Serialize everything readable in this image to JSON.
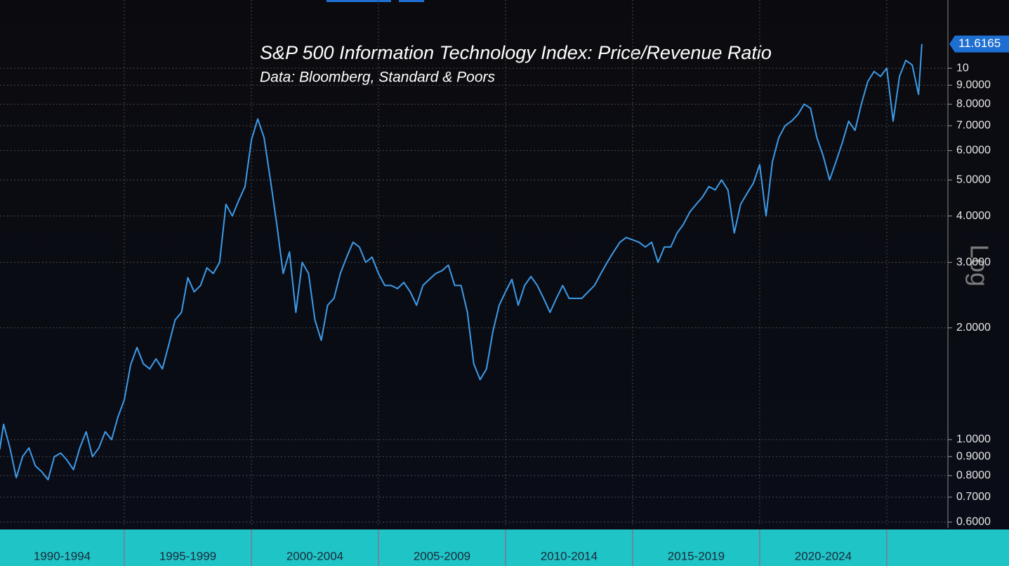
{
  "chart_data": {
    "type": "line",
    "title": "S&P 500 Information Technology Index: Price/Revenue Ratio",
    "subtitle": "Data: Bloomberg, Standard & Poors",
    "log_scale": true,
    "scale_label": "Log",
    "grid": true,
    "categories": [
      "1990-1994",
      "1995-1999",
      "2000-2004",
      "2005-2009",
      "2010-2014",
      "2015-2019",
      "2020-2024"
    ],
    "xticks": [
      1990,
      1995,
      2000,
      2005,
      2010,
      2015,
      2020,
      2025
    ],
    "xlim": [
      1990.11,
      2027.35
    ],
    "ylim": [
      0.588,
      15.26
    ],
    "yticks": [
      {
        "value": 0.6,
        "label": "0.6000"
      },
      {
        "value": 0.7,
        "label": "0.7000"
      },
      {
        "value": 0.8,
        "label": "0.8000"
      },
      {
        "value": 0.9,
        "label": "0.9000"
      },
      {
        "value": 1,
        "label": "1.0000"
      },
      {
        "value": 2,
        "label": "2.0000"
      },
      {
        "value": 3,
        "label": "3.0000"
      },
      {
        "value": 4,
        "label": "4.0000"
      },
      {
        "value": 5,
        "label": "5.0000"
      },
      {
        "value": 6,
        "label": "6.0000"
      },
      {
        "value": 7,
        "label": "7.0000"
      },
      {
        "value": 8,
        "label": "8.0000"
      },
      {
        "value": 9,
        "label": "9.0000"
      },
      10
    ],
    "x": [
      1990.1,
      1990.25,
      1990.5,
      1990.75,
      1991,
      1991.25,
      1991.5,
      1991.75,
      1992,
      1992.25,
      1992.5,
      1992.75,
      1993,
      1993.25,
      1993.5,
      1993.75,
      1994,
      1994.25,
      1994.5,
      1994.75,
      1995,
      1995.25,
      1995.5,
      1995.75,
      1996,
      1996.25,
      1996.5,
      1996.75,
      1997,
      1997.25,
      1997.5,
      1997.75,
      1998,
      1998.25,
      1998.5,
      1998.75,
      1999,
      1999.25,
      1999.5,
      1999.75,
      2000,
      2000.25,
      2000.5,
      2000.75,
      2001,
      2001.25,
      2001.5,
      2001.75,
      2002,
      2002.25,
      2002.5,
      2002.75,
      2003,
      2003.25,
      2003.5,
      2003.75,
      2004,
      2004.25,
      2004.5,
      2004.75,
      2005,
      2005.25,
      2005.5,
      2005.75,
      2006,
      2006.25,
      2006.5,
      2006.75,
      2007,
      2007.25,
      2007.5,
      2007.75,
      2008,
      2008.25,
      2008.5,
      2008.75,
      2009,
      2009.25,
      2009.5,
      2009.75,
      2010,
      2010.25,
      2010.5,
      2010.75,
      2011,
      2011.25,
      2011.5,
      2011.75,
      2012,
      2012.25,
      2012.5,
      2012.75,
      2013,
      2013.25,
      2013.5,
      2013.75,
      2014,
      2014.25,
      2014.5,
      2014.75,
      2015,
      2015.25,
      2015.5,
      2015.75,
      2016,
      2016.25,
      2016.5,
      2016.75,
      2017,
      2017.25,
      2017.5,
      2017.75,
      2018,
      2018.25,
      2018.5,
      2018.75,
      2019,
      2019.25,
      2019.5,
      2019.75,
      2020,
      2020.25,
      2020.5,
      2020.75,
      2021,
      2021.25,
      2021.5,
      2021.75,
      2022,
      2022.25,
      2022.5,
      2022.75,
      2023,
      2023.25,
      2023.5,
      2023.75,
      2024,
      2024.25,
      2024.5,
      2024.75,
      2025,
      2025.25,
      2025.5,
      2025.75,
      2026,
      2026.25,
      2026.38
    ],
    "series": [
      {
        "color": "#3d9be9",
        "values": [
          0.94,
          1.1,
          0.95,
          0.79,
          0.9,
          0.95,
          0.85,
          0.82,
          0.78,
          0.9,
          0.92,
          0.88,
          0.83,
          0.95,
          1.05,
          0.9,
          0.95,
          1.05,
          1.0,
          1.15,
          1.28,
          1.59,
          1.77,
          1.6,
          1.55,
          1.65,
          1.55,
          1.8,
          2.1,
          2.2,
          2.73,
          2.5,
          2.6,
          2.9,
          2.8,
          3.0,
          4.3,
          4.0,
          4.4,
          4.8,
          6.4,
          7.3,
          6.5,
          5.0,
          3.8,
          2.8,
          3.2,
          2.2,
          3.0,
          2.8,
          2.1,
          1.85,
          2.3,
          2.4,
          2.8,
          3.1,
          3.4,
          3.3,
          3.0,
          3.1,
          2.8,
          2.6,
          2.6,
          2.55,
          2.65,
          2.5,
          2.3,
          2.6,
          2.7,
          2.8,
          2.85,
          2.95,
          2.6,
          2.6,
          2.2,
          1.6,
          1.45,
          1.55,
          1.95,
          2.3,
          2.5,
          2.7,
          2.3,
          2.6,
          2.75,
          2.6,
          2.4,
          2.2,
          2.4,
          2.6,
          2.4,
          2.4,
          2.4,
          2.5,
          2.6,
          2.8,
          3.0,
          3.2,
          3.4,
          3.5,
          3.45,
          3.4,
          3.3,
          3.4,
          3.0,
          3.3,
          3.3,
          3.6,
          3.8,
          4.1,
          4.3,
          4.5,
          4.8,
          4.7,
          5.0,
          4.7,
          3.6,
          4.3,
          4.6,
          4.9,
          5.5,
          4.0,
          5.6,
          6.5,
          7.0,
          7.2,
          7.5,
          8.0,
          7.8,
          6.5,
          5.8,
          5.0,
          5.6,
          6.3,
          7.2,
          6.8,
          8.0,
          9.2,
          9.8,
          9.5,
          10.0,
          7.2,
          9.5,
          10.5,
          10.2,
          8.5,
          11.6165
        ]
      }
    ]
  }
}
